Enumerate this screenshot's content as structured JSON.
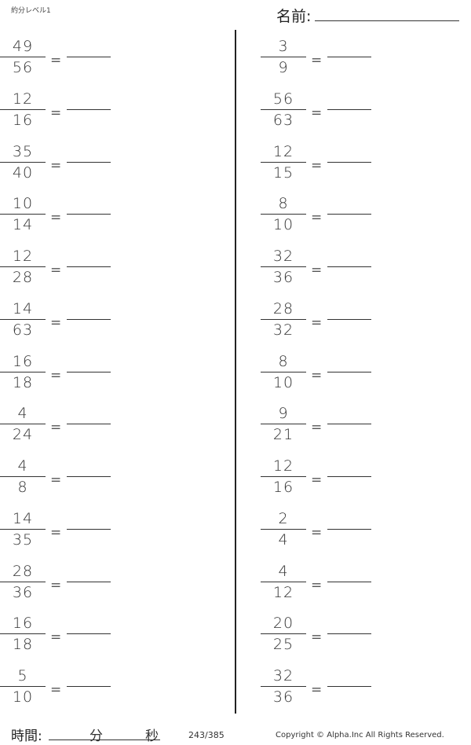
{
  "header": {
    "title": "約分レベル1",
    "name_label": "名前:"
  },
  "left": [
    [
      "49",
      "56"
    ],
    [
      "12",
      "16"
    ],
    [
      "35",
      "40"
    ],
    [
      "10",
      "14"
    ],
    [
      "12",
      "28"
    ],
    [
      "14",
      "63"
    ],
    [
      "16",
      "18"
    ],
    [
      "4",
      "24"
    ],
    [
      "4",
      "8"
    ],
    [
      "14",
      "35"
    ],
    [
      "28",
      "36"
    ],
    [
      "16",
      "18"
    ],
    [
      "5",
      "10"
    ]
  ],
  "right": [
    [
      "3",
      "9"
    ],
    [
      "56",
      "63"
    ],
    [
      "12",
      "15"
    ],
    [
      "8",
      "10"
    ],
    [
      "32",
      "36"
    ],
    [
      "28",
      "32"
    ],
    [
      "8",
      "10"
    ],
    [
      "9",
      "21"
    ],
    [
      "12",
      "16"
    ],
    [
      "2",
      "4"
    ],
    [
      "4",
      "12"
    ],
    [
      "20",
      "25"
    ],
    [
      "32",
      "36"
    ]
  ],
  "equals": "=",
  "footer": {
    "time_label": "時間:",
    "minutes": "分",
    "seconds": "秒",
    "page": "243/385",
    "copyright": "Copyright ©  Alpha.Inc All Rights Reserved."
  }
}
